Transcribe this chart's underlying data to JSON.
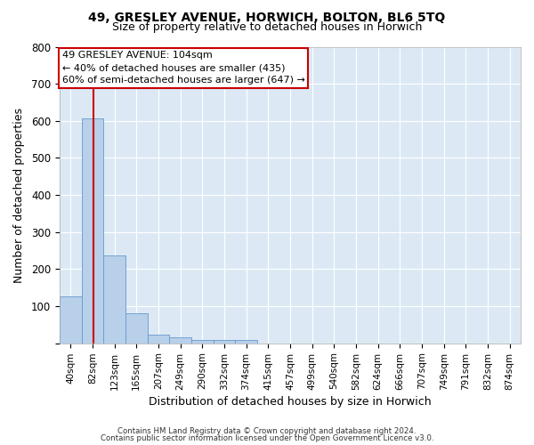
{
  "title": "49, GRESLEY AVENUE, HORWICH, BOLTON, BL6 5TQ",
  "subtitle": "Size of property relative to detached houses in Horwich",
  "xlabel": "Distribution of detached houses by size in Horwich",
  "ylabel": "Number of detached properties",
  "footer_line1": "Contains HM Land Registry data © Crown copyright and database right 2024.",
  "footer_line2": "Contains public sector information licensed under the Open Government Licence v3.0.",
  "bin_labels": [
    "40sqm",
    "82sqm",
    "123sqm",
    "165sqm",
    "207sqm",
    "249sqm",
    "290sqm",
    "332sqm",
    "374sqm",
    "415sqm",
    "457sqm",
    "499sqm",
    "540sqm",
    "582sqm",
    "624sqm",
    "666sqm",
    "707sqm",
    "749sqm",
    "791sqm",
    "832sqm",
    "874sqm"
  ],
  "bar_heights": [
    127,
    607,
    238,
    80,
    23,
    15,
    9,
    8,
    9,
    0,
    0,
    0,
    0,
    0,
    0,
    0,
    0,
    0,
    0,
    0,
    0
  ],
  "bar_color": "#b8d0ea",
  "bar_edge_color": "#6699cc",
  "property_line_label": "49 GRESLEY AVENUE: 104sqm",
  "annotation_line2": "← 40% of detached houses are smaller (435)",
  "annotation_line3": "60% of semi-detached houses are larger (647) →",
  "annotation_box_color": "white",
  "annotation_box_edge_color": "#cc0000",
  "vline_color": "#cc0000",
  "ylim": [
    0,
    800
  ],
  "yticks": [
    0,
    100,
    200,
    300,
    400,
    500,
    600,
    700,
    800
  ],
  "figure_bg": "#ffffff",
  "axes_bg": "#dce9f5",
  "grid_color": "#ffffff",
  "title_fontsize": 10,
  "subtitle_fontsize": 9
}
